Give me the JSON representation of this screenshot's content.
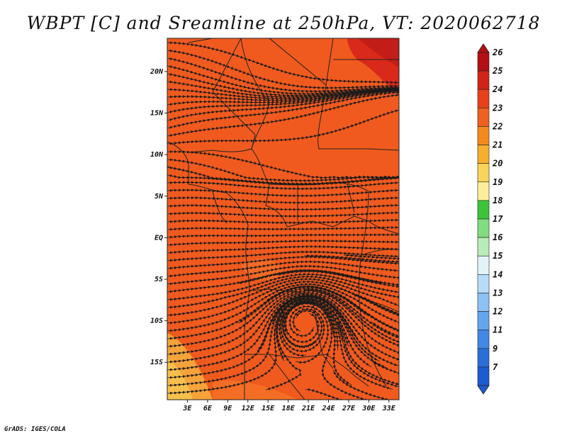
{
  "title": "WBPT [C] and Sreamline at 250hPa, VT: 2020062718",
  "credit": "GrADS: IGES/COLA",
  "map": {
    "lon_range": [
      0,
      34.5
    ],
    "lat_range": [
      -19.5,
      24
    ],
    "x_ticks": [
      {
        "value": 3,
        "label": "3E"
      },
      {
        "value": 6,
        "label": "6E"
      },
      {
        "value": 9,
        "label": "9E"
      },
      {
        "value": 12,
        "label": "12E"
      },
      {
        "value": 15,
        "label": "15E"
      },
      {
        "value": 18,
        "label": "18E"
      },
      {
        "value": 21,
        "label": "21E"
      },
      {
        "value": 24,
        "label": "24E"
      },
      {
        "value": 27,
        "label": "27E"
      },
      {
        "value": 30,
        "label": "30E"
      },
      {
        "value": 33,
        "label": "33E"
      }
    ],
    "y_ticks": [
      {
        "value": 20,
        "label": "20N"
      },
      {
        "value": 15,
        "label": "15N"
      },
      {
        "value": 10,
        "label": "10N"
      },
      {
        "value": 5,
        "label": "5N"
      },
      {
        "value": 0,
        "label": "EQ"
      },
      {
        "value": -5,
        "label": "5S"
      },
      {
        "value": -10,
        "label": "10S"
      },
      {
        "value": -15,
        "label": "15S"
      }
    ],
    "dominant_fill": "#f05a1e",
    "warm_patch_color": "#d8291a",
    "cool_patch_color": "#f5a33a",
    "streamline_color": "#1a1a1a",
    "border_color": "#222222"
  },
  "colorbar": {
    "levels": [
      {
        "label": "26",
        "color": "#b40f14"
      },
      {
        "label": "25",
        "color": "#d0241a"
      },
      {
        "label": "24",
        "color": "#e8401c"
      },
      {
        "label": "23",
        "color": "#f06020"
      },
      {
        "label": "22",
        "color": "#f48a1e"
      },
      {
        "label": "21",
        "color": "#f6ae2c"
      },
      {
        "label": "20",
        "color": "#f9d45a"
      },
      {
        "label": "19",
        "color": "#fcee9c"
      },
      {
        "label": "18",
        "color": "#3cc53c"
      },
      {
        "label": "17",
        "color": "#82dc82"
      },
      {
        "label": "16",
        "color": "#b8ecb8"
      },
      {
        "label": "15",
        "color": "#e2f4f8"
      },
      {
        "label": "14",
        "color": "#b6dcf8"
      },
      {
        "label": "13",
        "color": "#8cc2f4"
      },
      {
        "label": "12",
        "color": "#64a6ee"
      },
      {
        "label": "11",
        "color": "#4288e4"
      },
      {
        "label": "9",
        "color": "#2c6ed8"
      },
      {
        "label": "7",
        "color": "#1e5ad0"
      }
    ]
  }
}
